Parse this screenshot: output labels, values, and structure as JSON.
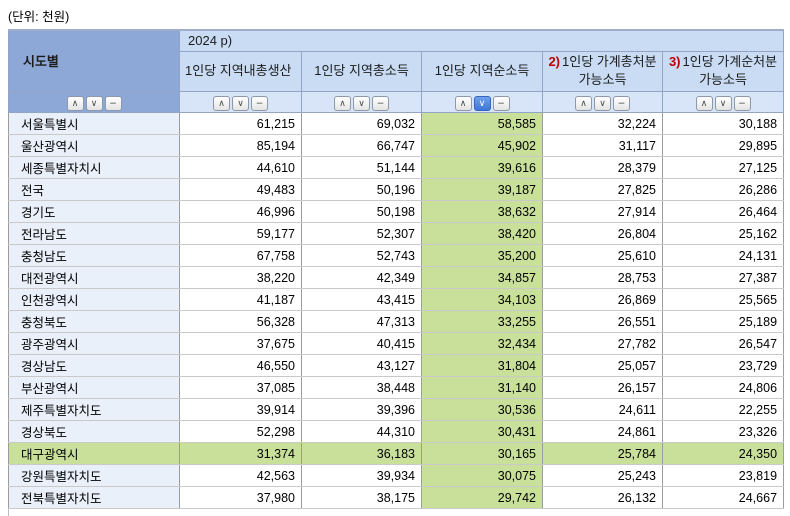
{
  "unit_label": "(단위: 천원)",
  "table": {
    "corner_header": "시도별",
    "year_header": "2024 p)",
    "columns": [
      {
        "prefix": "",
        "label": "1인당 지역내총생산",
        "align": "left",
        "green": false,
        "active_sort": null
      },
      {
        "prefix": "",
        "label": "1인당 지역총소득",
        "align": "center",
        "green": false,
        "active_sort": null
      },
      {
        "prefix": "",
        "label": "1인당 지역순소득",
        "align": "center",
        "green": true,
        "active_sort": "desc"
      },
      {
        "prefix": "2)",
        "label": "1인당 가계총처분가능소득",
        "align": "center",
        "green": false,
        "active_sort": null
      },
      {
        "prefix": "3)",
        "label": "1인당 가계순처분가능소득",
        "align": "center",
        "green": false,
        "active_sort": null
      }
    ],
    "sort_icons": {
      "asc": "∧",
      "desc": "∨",
      "remove": "−"
    },
    "rows": [
      {
        "region": "서울특별시",
        "highlight": false,
        "values": [
          "61,215",
          "69,032",
          "58,585",
          "32,224",
          "30,188"
        ]
      },
      {
        "region": "울산광역시",
        "highlight": false,
        "values": [
          "85,194",
          "66,747",
          "45,902",
          "31,117",
          "29,895"
        ]
      },
      {
        "region": "세종특별자치시",
        "highlight": false,
        "values": [
          "44,610",
          "51,144",
          "39,616",
          "28,379",
          "27,125"
        ]
      },
      {
        "region": "전국",
        "highlight": false,
        "values": [
          "49,483",
          "50,196",
          "39,187",
          "27,825",
          "26,286"
        ]
      },
      {
        "region": "경기도",
        "highlight": false,
        "values": [
          "46,996",
          "50,198",
          "38,632",
          "27,914",
          "26,464"
        ]
      },
      {
        "region": "전라남도",
        "highlight": false,
        "values": [
          "59,177",
          "52,307",
          "38,420",
          "26,804",
          "25,162"
        ]
      },
      {
        "region": "충청남도",
        "highlight": false,
        "values": [
          "67,758",
          "52,743",
          "35,200",
          "25,610",
          "24,131"
        ]
      },
      {
        "region": "대전광역시",
        "highlight": false,
        "values": [
          "38,220",
          "42,349",
          "34,857",
          "28,753",
          "27,387"
        ]
      },
      {
        "region": "인천광역시",
        "highlight": false,
        "values": [
          "41,187",
          "43,415",
          "34,103",
          "26,869",
          "25,565"
        ]
      },
      {
        "region": "충청북도",
        "highlight": false,
        "values": [
          "56,328",
          "47,313",
          "33,255",
          "26,551",
          "25,189"
        ]
      },
      {
        "region": "광주광역시",
        "highlight": false,
        "values": [
          "37,675",
          "40,415",
          "32,434",
          "27,782",
          "26,547"
        ]
      },
      {
        "region": "경상남도",
        "highlight": false,
        "values": [
          "46,550",
          "43,127",
          "31,804",
          "25,057",
          "23,729"
        ]
      },
      {
        "region": "부산광역시",
        "highlight": false,
        "values": [
          "37,085",
          "38,448",
          "31,140",
          "26,157",
          "24,806"
        ]
      },
      {
        "region": "제주특별자치도",
        "highlight": false,
        "values": [
          "39,914",
          "39,396",
          "30,536",
          "24,611",
          "22,255"
        ]
      },
      {
        "region": "경상북도",
        "highlight": false,
        "values": [
          "52,298",
          "44,310",
          "30,431",
          "24,861",
          "23,326"
        ]
      },
      {
        "region": "대구광역시",
        "highlight": true,
        "values": [
          "31,374",
          "36,183",
          "30,165",
          "25,784",
          "24,350"
        ]
      },
      {
        "region": "강원특별자치도",
        "highlight": false,
        "values": [
          "42,563",
          "39,934",
          "30,075",
          "25,243",
          "23,819"
        ]
      },
      {
        "region": "전북특별자치도",
        "highlight": false,
        "values": [
          "37,980",
          "38,175",
          "29,742",
          "26,132",
          "24,667"
        ]
      }
    ]
  },
  "colors": {
    "header_dark": "#8da7d6",
    "header_light": "#c9dcf4",
    "sort_cell_bg": "#d8e5f8",
    "label_cell_bg": "#e9f0fa",
    "highlight_green": "#c9e09b",
    "active_sort_button": "#3f76d8",
    "red_prefix": "#c00000",
    "header_border": "#93a5c6",
    "top_border": "#9fafc9"
  }
}
